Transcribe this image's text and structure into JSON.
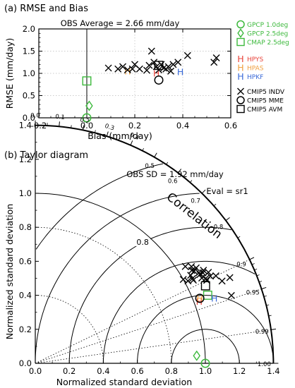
{
  "chart_data": [
    {
      "type": "scatter",
      "panel_label": "(a)",
      "title": "RMSE and Bias",
      "subtitle": "OBS Average = 2.66 mm/day",
      "xlabel": "Bias (mm/day)",
      "ylabel": "RMSE (mm/day)",
      "xlim": [
        -0.2,
        0.6
      ],
      "ylim": [
        0,
        2.0
      ],
      "xticks": [
        "-0.2",
        "0.0",
        "0.2",
        "0.4",
        "0.6"
      ],
      "yticks": [
        "0.0",
        "0.5",
        "1.0",
        "1.5",
        "2.0"
      ],
      "grid": true,
      "legend_position": "right",
      "legend": [
        {
          "symbol": "circle",
          "label": "GPCP 1.0deg",
          "color": "#3cb93c"
        },
        {
          "symbol": "diamond",
          "label": "GPCP 2.5deg",
          "color": "#3cb93c"
        },
        {
          "symbol": "square",
          "label": "CMAP 2.5deg",
          "color": "#3cb93c"
        },
        {
          "symbol": "H",
          "label": "HPYS",
          "color": "#e8433a"
        },
        {
          "symbol": "H",
          "label": "HPAS",
          "color": "#f0a040"
        },
        {
          "symbol": "H",
          "label": "HPKF",
          "color": "#3a6ad8"
        },
        {
          "symbol": "x",
          "label": "CMIP5 INDV",
          "color": "#000000"
        },
        {
          "symbol": "circle",
          "label": "CMIP5 MME",
          "color": "#000000"
        },
        {
          "symbol": "square",
          "label": "CMIP5 AVM",
          "color": "#000000"
        }
      ],
      "series": [
        {
          "name": "GPCP 1.0deg",
          "marker": "circle",
          "color": "#3cb93c",
          "points": [
            [
              0.0,
              0.0
            ]
          ]
        },
        {
          "name": "GPCP 2.5deg",
          "marker": "diamond",
          "color": "#3cb93c",
          "points": [
            [
              0.01,
              0.27
            ]
          ]
        },
        {
          "name": "CMAP 2.5deg",
          "marker": "square",
          "color": "#3cb93c",
          "points": [
            [
              0.0,
              0.83
            ]
          ]
        },
        {
          "name": "HPYS",
          "marker": "H",
          "color": "#e8433a",
          "points": [
            [
              0.29,
              1.0
            ]
          ]
        },
        {
          "name": "HPAS",
          "marker": "H",
          "color": "#f0a040",
          "points": [
            [
              0.17,
              1.05
            ]
          ]
        },
        {
          "name": "HPKF",
          "marker": "H",
          "color": "#3a6ad8",
          "points": [
            [
              0.39,
              1.03
            ]
          ]
        },
        {
          "name": "CMIP5 INDV",
          "marker": "x",
          "color": "#000000",
          "points": [
            [
              0.09,
              1.12
            ],
            [
              0.13,
              1.1
            ],
            [
              0.15,
              1.15
            ],
            [
              0.17,
              1.08
            ],
            [
              0.19,
              1.1
            ],
            [
              0.2,
              1.2
            ],
            [
              0.22,
              1.1
            ],
            [
              0.25,
              1.07
            ],
            [
              0.26,
              1.18
            ],
            [
              0.27,
              1.5
            ],
            [
              0.28,
              1.25
            ],
            [
              0.29,
              1.15
            ],
            [
              0.3,
              1.08
            ],
            [
              0.31,
              1.2
            ],
            [
              0.32,
              1.12
            ],
            [
              0.33,
              1.1
            ],
            [
              0.34,
              1.15
            ],
            [
              0.35,
              1.05
            ],
            [
              0.36,
              1.2
            ],
            [
              0.38,
              1.25
            ],
            [
              0.42,
              1.4
            ],
            [
              0.53,
              1.25
            ],
            [
              0.54,
              1.35
            ]
          ]
        },
        {
          "name": "CMIP5 MME",
          "marker": "circle",
          "color": "#000000",
          "points": [
            [
              0.3,
              0.85
            ]
          ]
        },
        {
          "name": "CMIP5 AVM",
          "marker": "square",
          "color": "#000000",
          "points": [
            [
              0.3,
              1.18
            ]
          ]
        }
      ]
    },
    {
      "type": "taylor",
      "panel_label": "(b)",
      "title": "Taylor diagram",
      "subtitle": "OBS SD = 1.92 mm/day",
      "eval_label": "Eval = sr1",
      "correlation_label": "Correlation",
      "xlabel": "Normalized standard deviation",
      "ylabel": "Normalized standard deviation",
      "sd_max": 1.4,
      "sd_ticks": [
        "0.0",
        "0.2",
        "0.4",
        "0.6",
        "0.8",
        "1.0",
        "1.2",
        "1.4"
      ],
      "correlation_ticks": [
        "0.0",
        "0.1",
        "0.2",
        "0.3",
        "0.4",
        "0.5",
        "0.6",
        "0.7",
        "0.8",
        "0.9",
        "0.95",
        "0.99",
        "1.00"
      ],
      "rms_contours": [
        0.2,
        0.4,
        0.6,
        0.8,
        1.0,
        1.2
      ],
      "rms_contour_labels": [
        "0.8"
      ],
      "series": [
        {
          "name": "GPCP 1.0deg",
          "marker": "circle",
          "color": "#3cb93c",
          "points": [
            [
              1.0,
              1.0
            ]
          ]
        },
        {
          "name": "GPCP 2.5deg",
          "marker": "diamond",
          "color": "#3cb93c",
          "points": [
            [
              0.95,
              0.9989
            ]
          ]
        },
        {
          "name": "CMAP 2.5deg",
          "marker": "square",
          "color": "#3cb93c",
          "points": [
            [
              1.09,
              0.93
            ]
          ]
        },
        {
          "name": "HPYS",
          "marker": "H",
          "color": "#e8433a",
          "points": [
            [
              1.03,
              0.936
            ]
          ]
        },
        {
          "name": "HPAS",
          "marker": "H",
          "color": "#f0a040",
          "points": [
            [
              1.04,
              0.93
            ]
          ]
        },
        {
          "name": "HPKF",
          "marker": "H",
          "color": "#3a6ad8",
          "points": [
            [
              1.12,
              0.94
            ]
          ]
        },
        {
          "name": "CMIP5 INDV",
          "marker": "x",
          "color": "#000000",
          "points": [
            [
              1.05,
              0.885
            ],
            [
              1.05,
              0.84
            ],
            [
              1.1,
              0.86
            ],
            [
              1.12,
              0.9
            ],
            [
              1.05,
              0.88
            ],
            [
              1.1,
              0.88
            ],
            [
              1.13,
              0.875
            ],
            [
              1.12,
              0.895
            ],
            [
              1.18,
              0.9
            ],
            [
              1.1,
              0.89
            ],
            [
              1.15,
              0.895
            ],
            [
              1.08,
              0.865
            ],
            [
              1.07,
              0.86
            ],
            [
              1.1,
              0.875
            ],
            [
              1.2,
              0.915
            ],
            [
              1.25,
              0.915
            ],
            [
              1.05,
              0.87
            ],
            [
              1.0,
              0.87
            ],
            [
              1.12,
              0.88
            ],
            [
              1.22,
              0.945
            ],
            [
              1.08,
              0.85
            ],
            [
              1.15,
              0.885
            ],
            [
              1.02,
              0.88
            ]
          ]
        },
        {
          "name": "CMIP5 MME",
          "marker": "circle",
          "color": "#000000",
          "points": [
            [
              1.04,
              0.93
            ]
          ]
        },
        {
          "name": "CMIP5 AVM",
          "marker": "square",
          "color": "#000000",
          "points": [
            [
              1.1,
              0.91
            ]
          ]
        }
      ]
    }
  ]
}
